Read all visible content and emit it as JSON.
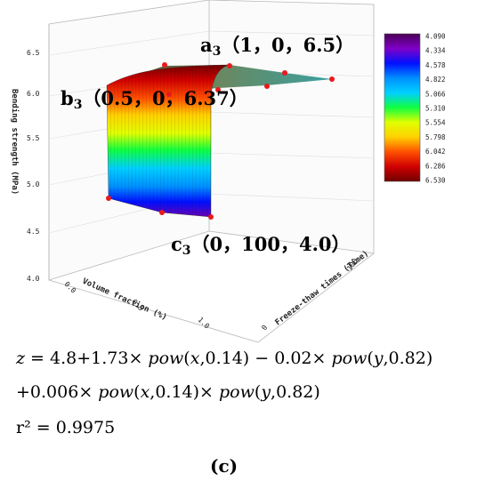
{
  "chart_data": {
    "type": "surface",
    "title": "",
    "xlabel": "Volume fraction (%)",
    "ylabel": "Freeze-thaw times (Time)",
    "zlabel": "Bending strength (MPa)",
    "x_ticks": [
      "0.0",
      "0.5",
      "1.0"
    ],
    "y_ticks": [
      "0",
      "100"
    ],
    "z_ticks": [
      "4.0",
      "4.5",
      "5.0",
      "5.5",
      "6.0",
      "6.5"
    ],
    "zlim": [
      4.0,
      6.6
    ],
    "colorbar_ticks": [
      "4.090",
      "4.334",
      "4.578",
      "4.822",
      "5.066",
      "5.310",
      "5.554",
      "5.798",
      "6.042",
      "6.286",
      "6.530"
    ],
    "colorbar_colors": [
      "#4b0055",
      "#8000c8",
      "#0010ff",
      "#0090ff",
      "#00d0ff",
      "#10ff40",
      "#e0ff00",
      "#ffd000",
      "#ff5000",
      "#d00000",
      "#700000"
    ],
    "annotations": [
      {
        "point": "a",
        "subscript": "3",
        "label": "（1，0，6.5）",
        "x": 1,
        "y": 0,
        "z": 6.5
      },
      {
        "point": "b",
        "subscript": "3",
        "label": "（0.5，0，6.37）",
        "x": 0.5,
        "y": 0,
        "z": 6.37
      },
      {
        "point": "c",
        "subscript": "3",
        "label": "（0，100，4.0）",
        "x": 0,
        "y": 100,
        "z": 4.0
      }
    ],
    "marker_color": "#e8191c"
  },
  "equation": {
    "line1_parts": [
      "z",
      " = 4.8+1.73× ",
      "pow",
      "(",
      "x",
      ",0.14) − 0.02× ",
      "pow",
      "(",
      "y",
      ",0.82)"
    ],
    "line2_parts": [
      "+0.006× ",
      "pow",
      "(",
      "x",
      ",0.14)× ",
      "pow",
      "(",
      "y",
      ",0.82)"
    ],
    "r2": "r² = 0.9975"
  },
  "panel_label": "(c)"
}
